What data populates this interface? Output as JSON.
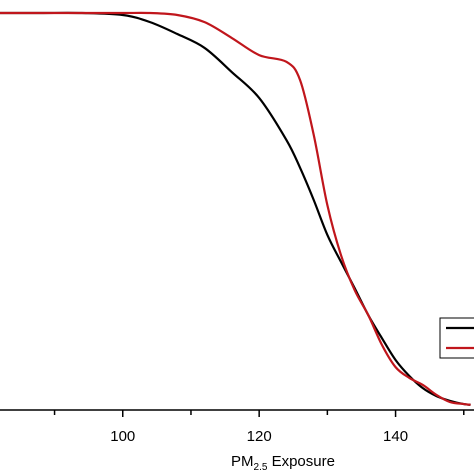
{
  "chart_data": {
    "type": "line",
    "x_label": [
      "PM",
      "2.5",
      " Exposure"
    ],
    "x": [
      82,
      88,
      94,
      100,
      104,
      108,
      112,
      116,
      120,
      124,
      126,
      128,
      130,
      132,
      134,
      136,
      138,
      140,
      142,
      144,
      146,
      148,
      150,
      151
    ],
    "series": [
      {
        "color": "#000000",
        "values": [
          1.0,
          1.0,
          1.0,
          0.995,
          0.977,
          0.947,
          0.912,
          0.851,
          0.786,
          0.68,
          0.61,
          0.529,
          0.441,
          0.373,
          0.307,
          0.239,
          0.181,
          0.126,
          0.086,
          0.055,
          0.035,
          0.023,
          0.015,
          0.013
        ]
      },
      {
        "color": "#c0161c",
        "values": [
          1.0,
          1.0,
          1.0,
          1.0,
          1.0,
          0.995,
          0.977,
          0.937,
          0.894,
          0.877,
          0.831,
          0.693,
          0.516,
          0.39,
          0.302,
          0.239,
          0.164,
          0.108,
          0.081,
          0.063,
          0.038,
          0.02,
          0.015,
          0.013
        ]
      }
    ],
    "xlim": [
      82,
      151.5
    ],
    "ylim": [
      0,
      1
    ],
    "xticks": [
      100,
      120,
      140
    ],
    "xminor_ticks": [
      90,
      110,
      130,
      150
    ],
    "legend": "right"
  }
}
